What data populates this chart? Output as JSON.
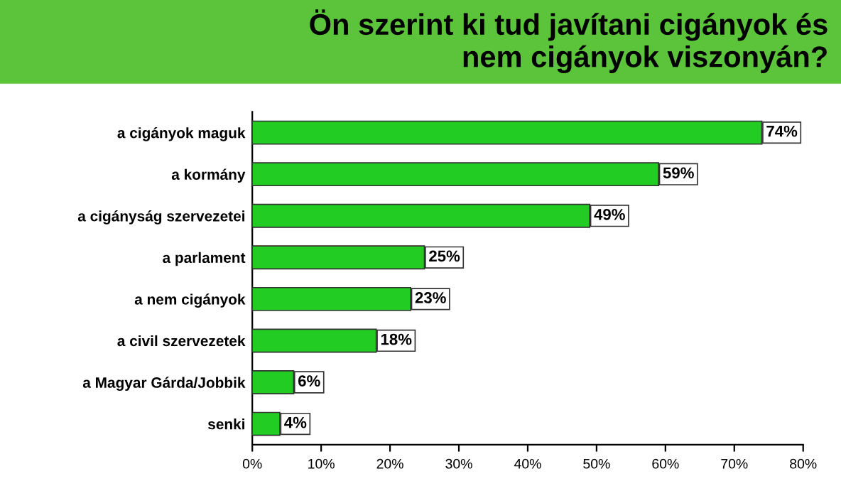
{
  "chart_data": {
    "type": "bar",
    "orientation": "horizontal",
    "title": "Ön szerint ki tud javítani cigányok és\nnem cigányok viszonyán?",
    "categories": [
      "a cigányok maguk",
      "a kormány",
      "a cigányság szervezetei",
      "a parlament",
      "a nem cigányok",
      "a civil szervezetek",
      "a Magyar Gárda/Jobbik",
      "senki"
    ],
    "values": [
      74,
      59,
      49,
      25,
      23,
      18,
      6,
      4
    ],
    "value_labels": [
      "74%",
      "59%",
      "49%",
      "25%",
      "23%",
      "18%",
      "6%",
      "4%"
    ],
    "color": "#22cc22",
    "xlim": [
      0,
      80
    ],
    "xticks": [
      {
        "value": 0,
        "label": "0%"
      },
      {
        "value": 10,
        "label": "10%"
      },
      {
        "value": 20,
        "label": "20%"
      },
      {
        "value": 30,
        "label": "30%"
      },
      {
        "value": 40,
        "label": "40%"
      },
      {
        "value": 50,
        "label": "50%"
      },
      {
        "value": 60,
        "label": "60%"
      },
      {
        "value": 70,
        "label": "70%"
      },
      {
        "value": 80,
        "label": "80%"
      }
    ],
    "grid": false,
    "legend": false
  }
}
